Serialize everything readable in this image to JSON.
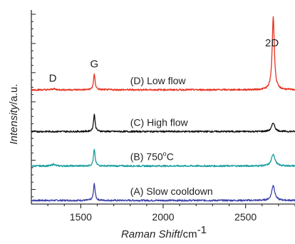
{
  "chart_data": {
    "type": "line",
    "xlabel": "Raman Shift",
    "xlabel_unit": "/cm",
    "xlabel_unit_sup": "-1",
    "ylabel": "Intensity",
    "ylabel_unit": "/a.u.",
    "xlim": [
      1200,
      2800
    ],
    "x_ticks": [
      1500,
      2000,
      2500
    ],
    "peak_labels": [
      {
        "text": "D",
        "x": 1330
      },
      {
        "text": "G",
        "x": 1582
      },
      {
        "text": "2D",
        "x": 2660
      }
    ],
    "series": [
      {
        "name": "(A) Slow cooldown",
        "name_main": "(A) Slow cooldown",
        "color": "#3a3fa8",
        "baseline": 0.05,
        "label_x": 1800,
        "peaks": [
          {
            "center": 1582,
            "height": 0.46,
            "width": 12
          },
          {
            "center": 2668,
            "height": 0.42,
            "width": 22
          }
        ]
      },
      {
        "name": "(B) 750°C",
        "name_main": "(B) 750",
        "name_sup": "o",
        "name_tail": "C",
        "color": "#1a9e9e",
        "baseline": 1.0,
        "label_x": 1800,
        "peaks": [
          {
            "center": 1335,
            "height": 0.05,
            "width": 20
          },
          {
            "center": 1582,
            "height": 0.45,
            "width": 12
          },
          {
            "center": 2668,
            "height": 0.33,
            "width": 25
          }
        ]
      },
      {
        "name": "(C) High flow",
        "name_main": "(C) High flow",
        "color": "#111111",
        "baseline": 1.95,
        "label_x": 1800,
        "peaks": [
          {
            "center": 1582,
            "height": 0.47,
            "width": 12
          },
          {
            "center": 2668,
            "height": 0.24,
            "width": 22
          }
        ]
      },
      {
        "name": "(D) Low flow",
        "name_main": "(D) Low flow",
        "color": "#e8301e",
        "baseline": 3.1,
        "label_x": 1800,
        "peaks": [
          {
            "center": 1335,
            "height": 0.03,
            "width": 20
          },
          {
            "center": 1582,
            "height": 0.42,
            "width": 12
          },
          {
            "center": 2668,
            "height": 2.0,
            "width": 16
          }
        ]
      }
    ],
    "ylim": [
      -0.05,
      5.3
    ]
  }
}
